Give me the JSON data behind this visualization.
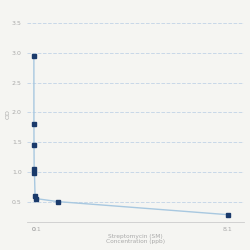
{
  "x": [
    0.001,
    0.003,
    0.006,
    0.0125,
    0.025,
    0.05,
    0.1,
    1.0,
    8.1
  ],
  "y": [
    2.95,
    1.8,
    1.45,
    1.05,
    0.98,
    0.6,
    0.55,
    0.5,
    0.28
  ],
  "xlabel_line1": "Streptomycin (SM)",
  "xlabel_line2": "Concentration (ppb)",
  "ylabel": "OD",
  "x_ticks": [
    0,
    0.1,
    8.1
  ],
  "x_tick_labels": [
    "0",
    "0.1",
    "8.1"
  ],
  "y_ticks": [
    0.5,
    1.0,
    1.5,
    2.0,
    2.5,
    3.0,
    3.5
  ],
  "y_tick_labels": [
    "0.5",
    "1.0",
    "1.5",
    "2.0",
    "2.5",
    "3.0",
    "3.5"
  ],
  "xlim": [
    -0.3,
    8.8
  ],
  "ylim": [
    0.15,
    3.8
  ],
  "line_color": "#a8c8e0",
  "marker_color": "#1a3a6b",
  "background_color": "#f5f5f2",
  "grid_color": "#c8d8e8"
}
